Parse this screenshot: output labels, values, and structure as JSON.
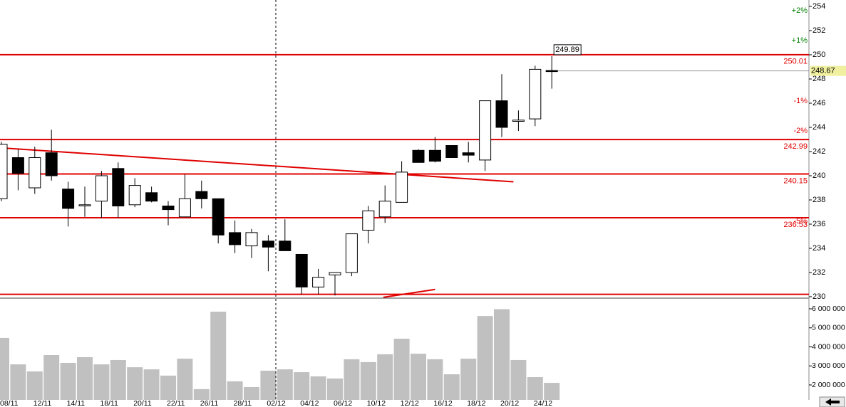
{
  "chart_data": [
    {
      "type": "candlestick",
      "categories": [
        "08/11",
        null,
        "12/11",
        null,
        "14/11",
        null,
        "18/11",
        null,
        "20/11",
        null,
        "22/11",
        null,
        "26/11",
        null,
        "28/11",
        null,
        "02/12",
        null,
        "04/12",
        null,
        "06/12",
        null,
        "10/12",
        null,
        "12/12",
        null,
        "16/12",
        null,
        "18/12",
        null,
        "20/12",
        null,
        "24/12",
        null
      ],
      "open": [
        238.1,
        241.5,
        239.0,
        241.9,
        238.9,
        237.6,
        237.9,
        240.6,
        237.6,
        238.6,
        237.5,
        236.6,
        238.7,
        238.1,
        235.3,
        234.2,
        234.6,
        234.6,
        233.5,
        230.8,
        231.8,
        232.0,
        235.5,
        236.6,
        237.8,
        242.1,
        242.1,
        242.5,
        241.9,
        241.3,
        246.2,
        244.5,
        244.7,
        248.7
      ],
      "high": [
        242.8,
        242.2,
        242.4,
        243.8,
        239.5,
        239.1,
        240.4,
        241.1,
        239.8,
        239.1,
        237.9,
        240.1,
        239.6,
        238.1,
        236.3,
        235.6,
        235.1,
        236.4,
        233.5,
        232.3,
        232.0,
        235.2,
        237.5,
        239.2,
        241.2,
        242.2,
        243.2,
        242.5,
        242.8,
        246.2,
        248.4,
        245.4,
        249.1,
        249.89
      ],
      "low": [
        237.9,
        238.8,
        238.5,
        239.6,
        235.8,
        236.6,
        236.5,
        236.5,
        237.4,
        237.8,
        235.9,
        236.6,
        237.3,
        234.4,
        233.6,
        233.2,
        232.1,
        233.8,
        230.2,
        230.2,
        230.1,
        231.7,
        234.4,
        236.1,
        237.8,
        241.1,
        241.1,
        241.5,
        241.1,
        240.4,
        243.2,
        243.7,
        244.1,
        247.2
      ],
      "close": [
        242.6,
        240.2,
        241.5,
        240.0,
        237.3,
        237.6,
        240.0,
        237.5,
        239.2,
        237.9,
        237.2,
        238.1,
        238.1,
        235.1,
        234.3,
        235.3,
        234.1,
        233.8,
        230.8,
        231.6,
        232.0,
        235.2,
        237.1,
        237.9,
        240.3,
        241.1,
        241.2,
        241.5,
        241.7,
        246.2,
        244.0,
        244.6,
        248.8,
        248.67
      ],
      "ylim": [
        229.94,
        254.53
      ],
      "yticks": [
        230,
        232,
        234,
        236,
        238,
        240,
        242,
        244,
        246,
        248,
        250,
        252,
        254
      ],
      "levels": [
        250.01,
        242.99,
        240.15,
        236.53
      ],
      "bottom_level": 230.2,
      "percent_ticks": [
        {
          "value": 2,
          "label": "+2%"
        },
        {
          "value": 1,
          "label": "+1%"
        },
        {
          "value": -1,
          "label": "-1%"
        },
        {
          "value": -2,
          "label": "-2%"
        },
        {
          "value": -5,
          "label": "-5%"
        }
      ],
      "trendlines": [
        {
          "from": [
            0,
            242.3
          ],
          "to": [
            30.7,
            239.5
          ]
        },
        {
          "from": [
            22.9,
            229.95
          ],
          "to": [
            26,
            230.6
          ]
        }
      ],
      "level_color": "#e00000"
    },
    {
      "type": "bar",
      "values": [
        4470000,
        3080000,
        2710000,
        3570000,
        3160000,
        3460000,
        3080000,
        3310000,
        2930000,
        2820000,
        2490000,
        3380000,
        1780000,
        5850000,
        2190000,
        1890000,
        2750000,
        2820000,
        2670000,
        2450000,
        2340000,
        3350000,
        3200000,
        3610000,
        4430000,
        3640000,
        3350000,
        2560000,
        3380000,
        5620000,
        5980000,
        3310000,
        2410000,
        2110000
      ],
      "ylim": [
        1215000,
        6523000
      ],
      "yticks": [
        {
          "value": 2000000,
          "label": "2 000 000"
        },
        {
          "value": 3000000,
          "label": "3 000 000"
        },
        {
          "value": 4000000,
          "label": "4 000 000"
        },
        {
          "value": 5000000,
          "label": "5 000 000"
        },
        {
          "value": 6000000,
          "label": "6 000 000"
        }
      ],
      "color": "#c0c0c0"
    }
  ]
}
